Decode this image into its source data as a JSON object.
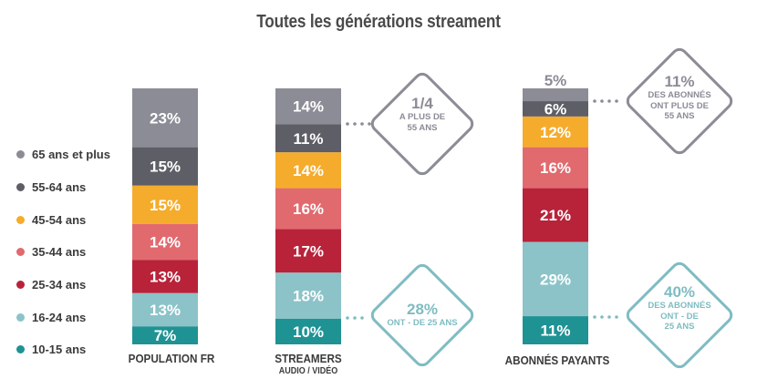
{
  "title": "Toutes les générations streament",
  "colors": {
    "65 ans et plus": "#8b8c96",
    "55-64 ans": "#5d5e66",
    "45-54 ans": "#f5ac2c",
    "35-44 ans": "#e16a6f",
    "25-34 ans": "#b8233a",
    "16-24 ans": "#8cc3c8",
    "10-15 ans": "#1f9294"
  },
  "legend": [
    {
      "label": "65 ans et plus",
      "icon": "dot"
    },
    {
      "label": "55-64 ans",
      "icon": "dot"
    },
    {
      "label": "45-54 ans",
      "icon": "dot"
    },
    {
      "label": "35-44 ans",
      "icon": "dot"
    },
    {
      "label": "25-34 ans",
      "icon": "dot"
    },
    {
      "label": "16-24 ans",
      "icon": "dot"
    },
    {
      "label": "10-15 ans",
      "icon": "dot"
    }
  ],
  "chart_data": {
    "type": "bar",
    "stacked": true,
    "unit": "%",
    "categories": [
      "POPULATION FR",
      "STREAMERS",
      "ABONNÉS PAYANTS"
    ],
    "category_sublabels": [
      "",
      "AUDIO / VIDÉO",
      ""
    ],
    "series": [
      {
        "name": "65 ans et plus",
        "values": [
          23,
          14,
          5
        ]
      },
      {
        "name": "55-64 ans",
        "values": [
          15,
          11,
          6
        ]
      },
      {
        "name": "45-54 ans",
        "values": [
          15,
          14,
          12
        ]
      },
      {
        "name": "35-44 ans",
        "values": [
          14,
          16,
          16
        ]
      },
      {
        "name": "25-34 ans",
        "values": [
          13,
          17,
          21
        ]
      },
      {
        "name": "16-24 ans",
        "values": [
          13,
          18,
          29
        ]
      },
      {
        "name": "10-15 ans",
        "values": [
          7,
          10,
          11
        ]
      }
    ],
    "data_labels": [
      [
        "23%",
        "15%",
        "15%",
        "14%",
        "13%",
        "13%",
        "7%"
      ],
      [
        "14%",
        "11%",
        "14%",
        "16%",
        "17%",
        "18%",
        "10%"
      ],
      [
        "5%",
        "6%",
        "12%",
        "16%",
        "21%",
        "29%",
        "11%"
      ]
    ],
    "legend_position": "left",
    "grid": false
  },
  "callouts": [
    {
      "big": "1/4",
      "lines": [
        "A PLUS DE",
        "55 ANS"
      ],
      "color": "gray"
    },
    {
      "big": "28%",
      "lines": [
        "ONT - DE 25 ANS"
      ],
      "color": "teal"
    },
    {
      "big": "11%",
      "lines": [
        "DES ABONNÉS",
        "ONT PLUS DE",
        "55 ANS"
      ],
      "color": "gray"
    },
    {
      "big": "40%",
      "lines": [
        "DES ABONNÉS",
        "ONT - DE",
        "25 ANS"
      ],
      "color": "teal"
    }
  ]
}
